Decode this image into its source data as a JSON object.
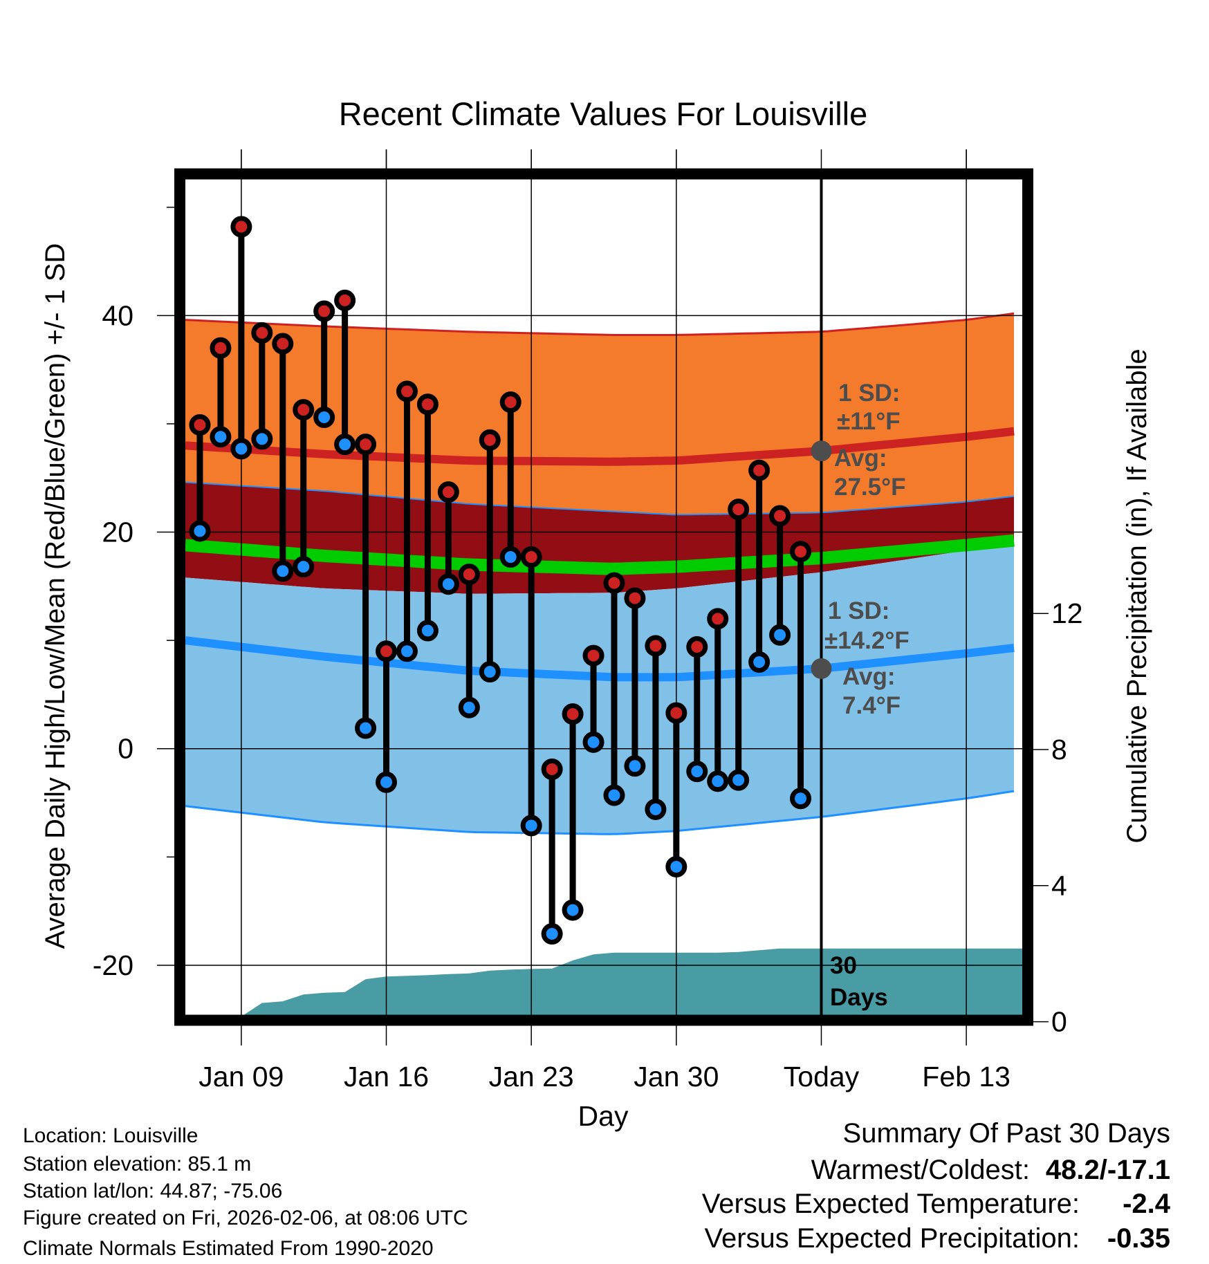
{
  "chart_data": {
    "type": "line",
    "title": "Recent Climate Values For Louisville",
    "xlabel": "Day",
    "ylabel": "Average Daily High/Low/Mean (Red/Blue/Green) +/- 1 SD",
    "y2label": "Cumulative Precipitation (in), If Available",
    "ylim": [
      -24.6,
      52.6
    ],
    "y2lim": [
      0,
      24
    ],
    "xlim_day_of_year": [
      6.3,
      46.7
    ],
    "yticks": [
      40,
      20,
      0,
      -20
    ],
    "yticks_minor": [
      50,
      30,
      10,
      -10
    ],
    "y2ticks": [
      0,
      4,
      8,
      12
    ],
    "xticks": [
      {
        "day": 9,
        "label": "Jan 09"
      },
      {
        "day": 16,
        "label": "Jan 16"
      },
      {
        "day": 23,
        "label": "Jan 23"
      },
      {
        "day": 30,
        "label": "Jan 30"
      },
      {
        "day": 37,
        "label": "Today"
      },
      {
        "day": 44,
        "label": "Feb 13"
      }
    ],
    "today_day": 37,
    "observed": {
      "days": [
        7,
        8,
        9,
        10,
        11,
        12,
        13,
        14,
        15,
        16,
        17,
        18,
        19,
        20,
        21,
        22,
        23,
        24,
        25,
        26,
        27,
        28,
        29,
        30,
        31,
        32,
        33,
        34,
        35,
        36
      ],
      "high": [
        29.9,
        37.0,
        48.2,
        38.4,
        37.4,
        31.3,
        40.4,
        41.4,
        28.1,
        9.0,
        33.0,
        31.8,
        23.7,
        16.1,
        28.5,
        32.0,
        17.7,
        -1.9,
        3.2,
        8.6,
        15.3,
        13.9,
        9.5,
        3.3,
        9.4,
        12.0,
        22.1,
        25.7,
        21.5,
        18.2
      ],
      "low": [
        20.1,
        28.8,
        27.7,
        28.6,
        16.4,
        16.8,
        30.6,
        28.1,
        1.9,
        -3.1,
        9.0,
        10.9,
        15.2,
        3.8,
        7.1,
        17.7,
        -7.1,
        -17.1,
        -14.9,
        0.6,
        -4.3,
        -1.6,
        -5.6,
        -10.9,
        -2.1,
        -3.0,
        -2.9,
        8.0,
        10.5,
        -4.6
      ]
    },
    "normals": {
      "days": [
        6.3,
        13,
        20,
        27,
        30,
        37,
        44,
        46.7
      ],
      "high_avg": [
        28.0,
        27.2,
        26.6,
        26.5,
        26.6,
        27.5,
        28.8,
        29.4
      ],
      "high_plus_sd": [
        39.6,
        39.0,
        38.5,
        38.2,
        38.2,
        38.5,
        39.6,
        40.3
      ],
      "high_minus_sd": [
        24.6,
        23.8,
        22.6,
        21.9,
        21.6,
        21.8,
        22.8,
        23.4
      ],
      "mean": [
        18.8,
        17.8,
        17.0,
        16.6,
        16.8,
        17.6,
        18.8,
        19.3
      ],
      "low_avg": [
        10.0,
        8.5,
        7.2,
        6.6,
        6.6,
        7.4,
        8.8,
        9.4
      ],
      "low_plus_sd": [
        15.8,
        14.8,
        14.3,
        14.4,
        14.8,
        16.3,
        18.3,
        18.9
      ],
      "low_minus_sd": [
        -5.3,
        -6.8,
        -7.7,
        -7.9,
        -7.6,
        -6.3,
        -4.6,
        -3.8
      ]
    },
    "precip": {
      "days": [
        7,
        8,
        9,
        10,
        11,
        12,
        13,
        14,
        15,
        16,
        17,
        18,
        19,
        20,
        21,
        22,
        23,
        24,
        25,
        26,
        27,
        28,
        29,
        30,
        31,
        32,
        33,
        34,
        35,
        36,
        37,
        46.7
      ],
      "cumulative_in": [
        0,
        0,
        0.15,
        0.55,
        0.6,
        0.8,
        0.85,
        0.87,
        1.25,
        1.33,
        1.35,
        1.37,
        1.4,
        1.42,
        1.5,
        1.53,
        1.55,
        1.56,
        1.8,
        1.98,
        2.03,
        2.03,
        2.03,
        2.03,
        2.03,
        2.03,
        2.05,
        2.1,
        2.15,
        2.15,
        2.15,
        2.15
      ]
    },
    "annotations": {
      "high_sd_1": "1 SD:",
      "high_sd_2": "±11°F",
      "high_avg_1": "Avg:",
      "high_avg_2": "27.5°F",
      "low_sd_1": "1 SD:",
      "low_sd_2": "±14.2°F",
      "low_avg_1": "Avg:",
      "low_avg_2": "7.4°F",
      "days_1": "30",
      "days_2": "Days"
    },
    "colors": {
      "high_band": "#f47a2c",
      "overlap_band": "#930d14",
      "low_band": "#82c1e7",
      "high_line": "#cc2222",
      "low_line": "#1e90ff",
      "mean_line": "#00cc00",
      "precip": "#4a9ca4",
      "annotation": "#4d4d4d"
    }
  },
  "footer": {
    "left": [
      "Location: Louisville",
      "Station elevation: 85.1 m",
      "Station lat/lon: 44.87; -75.06",
      "Figure created on Fri, 2026-02-06, at 08:06 UTC",
      "Climate Normals Estimated From 1990-2020"
    ],
    "summary_title": "Summary Of Past 30 Days",
    "warmest_coldest_label": "Warmest/Coldest:",
    "warmest_coldest_value": "48.2/-17.1",
    "temp_label": "Versus Expected Temperature:",
    "temp_value": "-2.4",
    "temp_color": "#1e90ff",
    "precip_label": "Versus Expected Precipitation:",
    "precip_value": "-0.35",
    "precip_color": "#a0522d"
  }
}
